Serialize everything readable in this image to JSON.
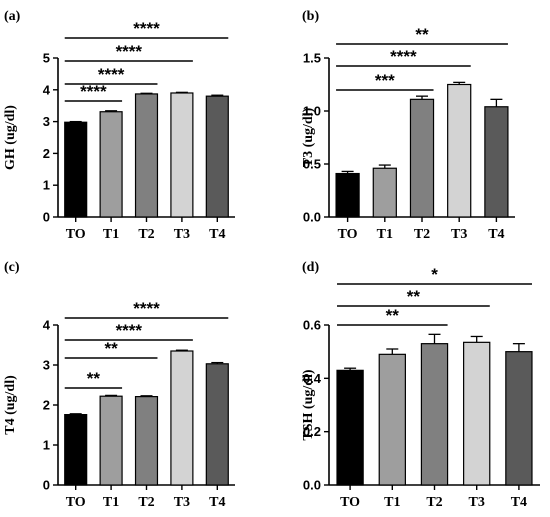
{
  "chart_data": [
    {
      "panel": "(a)",
      "type": "bar",
      "categories": [
        "TO",
        "T1",
        "T2",
        "T3",
        "T4"
      ],
      "values": [
        2.98,
        3.31,
        3.87,
        3.9,
        3.8
      ],
      "errors": [
        0.02,
        0.03,
        0.02,
        0.02,
        0.03
      ],
      "colors": [
        "#000000",
        "#9e9e9e",
        "#808080",
        "#d3d3d3",
        "#5a5a5a"
      ],
      "ylabel": "GH (ug/dl)",
      "ylim": [
        0,
        5
      ],
      "yticks": [
        "0",
        "1",
        "2",
        "3",
        "4",
        "5"
      ],
      "significance": [
        {
          "from": 0,
          "to": 1,
          "label": "****"
        },
        {
          "from": 0,
          "to": 2,
          "label": "****"
        },
        {
          "from": 0,
          "to": 3,
          "label": "****"
        },
        {
          "from": 0,
          "to": 4,
          "label": "****"
        }
      ]
    },
    {
      "panel": "(b)",
      "type": "bar",
      "categories": [
        "TO",
        "T1",
        "T2",
        "T3",
        "T4"
      ],
      "values": [
        0.41,
        0.46,
        1.11,
        1.25,
        1.04
      ],
      "errors": [
        0.02,
        0.03,
        0.03,
        0.02,
        0.07
      ],
      "colors": [
        "#000000",
        "#9e9e9e",
        "#808080",
        "#d3d3d3",
        "#5a5a5a"
      ],
      "ylabel": "T3 (ug/dl)",
      "ylim": [
        0,
        1.5
      ],
      "yticks": [
        "0.0",
        "0.5",
        "1.0",
        "1.5"
      ],
      "significance": [
        {
          "from": 0,
          "to": 2,
          "label": "***"
        },
        {
          "from": 0,
          "to": 3,
          "label": "****"
        },
        {
          "from": 0,
          "to": 4,
          "label": "**"
        }
      ]
    },
    {
      "panel": "(c)",
      "type": "bar",
      "categories": [
        "TO",
        "T1",
        "T2",
        "T3",
        "T4"
      ],
      "values": [
        1.76,
        2.22,
        2.21,
        3.35,
        3.03
      ],
      "errors": [
        0.02,
        0.02,
        0.02,
        0.02,
        0.03
      ],
      "colors": [
        "#000000",
        "#9e9e9e",
        "#808080",
        "#d3d3d3",
        "#5a5a5a"
      ],
      "ylabel": "T4 (ug/dl)",
      "ylim": [
        0,
        4
      ],
      "yticks": [
        "0",
        "1",
        "2",
        "3",
        "4"
      ],
      "significance": [
        {
          "from": 0,
          "to": 1,
          "label": "**"
        },
        {
          "from": 0,
          "to": 2,
          "label": "**"
        },
        {
          "from": 0,
          "to": 3,
          "label": "****"
        },
        {
          "from": 0,
          "to": 4,
          "label": "****"
        }
      ]
    },
    {
      "panel": "(d)",
      "type": "bar",
      "categories": [
        "TO",
        "T1",
        "T2",
        "T3",
        "T4"
      ],
      "values": [
        0.43,
        0.49,
        0.53,
        0.535,
        0.5
      ],
      "errors": [
        0.008,
        0.02,
        0.035,
        0.022,
        0.03
      ],
      "colors": [
        "#000000",
        "#9e9e9e",
        "#808080",
        "#d3d3d3",
        "#5a5a5a"
      ],
      "ylabel": "TSH (ug/dl)",
      "ylim": [
        0,
        0.6
      ],
      "yticks": [
        "0.0",
        "0.2",
        "0.4",
        "0.6"
      ],
      "significance": [
        {
          "from": 0,
          "to": 2,
          "label": "**"
        },
        {
          "from": 0,
          "to": 3,
          "label": "**"
        },
        {
          "from": 0,
          "to": 4,
          "label": "*"
        }
      ]
    }
  ]
}
